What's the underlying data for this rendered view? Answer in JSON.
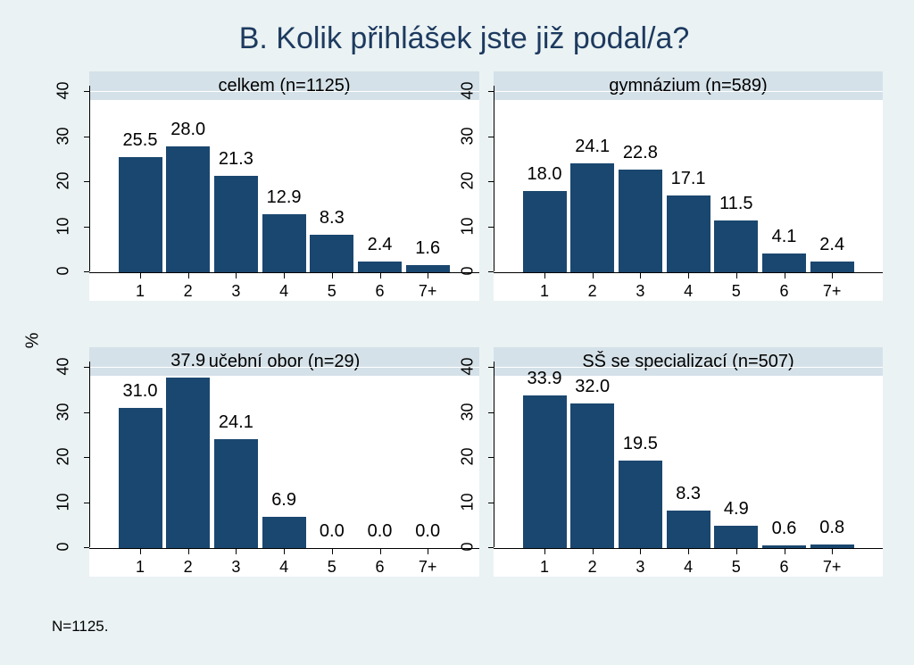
{
  "title": "B. Kolik přihlášek jste již podal/a?",
  "y_axis_title": "%",
  "footnote": "N=1125.",
  "chart_data": [
    {
      "type": "bar",
      "title": "celkem (n=1125)",
      "categories": [
        "1",
        "2",
        "3",
        "4",
        "5",
        "6",
        "7+"
      ],
      "values": [
        25.5,
        28.0,
        21.3,
        12.9,
        8.3,
        2.4,
        1.6
      ],
      "value_labels": [
        "25.5",
        "28.0",
        "21.3",
        "12.9",
        "8.3",
        "2.4",
        "1.6"
      ],
      "ylim": [
        0,
        40
      ],
      "yticks": [
        "0",
        "10",
        "20",
        "30",
        "40"
      ]
    },
    {
      "type": "bar",
      "title": "gymnázium (n=589)",
      "categories": [
        "1",
        "2",
        "3",
        "4",
        "5",
        "6",
        "7+"
      ],
      "values": [
        18.0,
        24.1,
        22.8,
        17.1,
        11.5,
        4.1,
        2.4
      ],
      "value_labels": [
        "18.0",
        "24.1",
        "22.8",
        "17.1",
        "11.5",
        "4.1",
        "2.4"
      ],
      "ylim": [
        0,
        40
      ],
      "yticks": [
        "0",
        "10",
        "20",
        "30",
        "40"
      ]
    },
    {
      "type": "bar",
      "title": "učební obor (n=29)",
      "categories": [
        "1",
        "2",
        "3",
        "4",
        "5",
        "6",
        "7+"
      ],
      "values": [
        31.0,
        37.9,
        24.1,
        6.9,
        0.0,
        0.0,
        0.0
      ],
      "value_labels": [
        "31.0",
        "37.9",
        "24.1",
        "6.9",
        "0.0",
        "0.0",
        "0.0"
      ],
      "ylim": [
        0,
        40
      ],
      "yticks": [
        "0",
        "10",
        "20",
        "30",
        "40"
      ]
    },
    {
      "type": "bar",
      "title": "SŠ se specializací (n=507)",
      "categories": [
        "1",
        "2",
        "3",
        "4",
        "5",
        "6",
        "7+"
      ],
      "values": [
        33.9,
        32.0,
        19.5,
        8.3,
        4.9,
        0.6,
        0.8
      ],
      "value_labels": [
        "33.9",
        "32.0",
        "19.5",
        "8.3",
        "4.9",
        "0.6",
        "0.8"
      ],
      "ylim": [
        0,
        40
      ],
      "yticks": [
        "0",
        "10",
        "20",
        "30",
        "40"
      ]
    }
  ],
  "colors": {
    "bar": "#1a476f",
    "header": "#d5e1e8",
    "background": "#eaf2f3",
    "title": "#1d3a5f"
  }
}
